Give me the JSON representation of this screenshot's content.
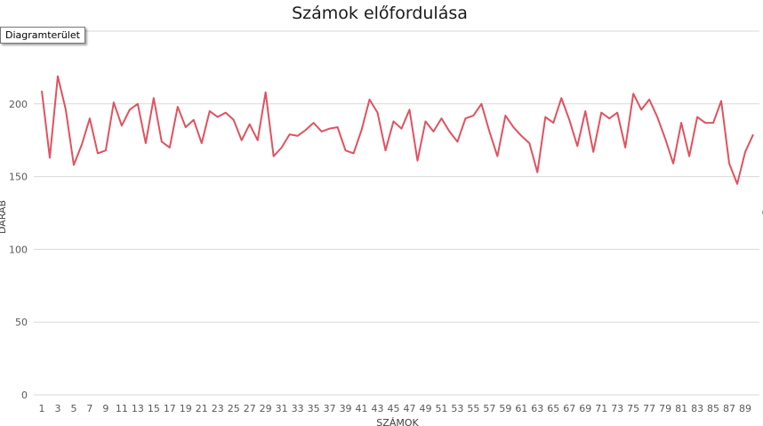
{
  "tooltip": "Diagramterület",
  "chart_data": {
    "type": "line",
    "title": "Számok előfordulása",
    "xlabel": "SZÁMOK",
    "ylabel": "DARAB",
    "ylim": [
      0,
      250
    ],
    "yticks": [
      0,
      50,
      100,
      150,
      200
    ],
    "grid": true,
    "x": [
      1,
      2,
      3,
      4,
      5,
      6,
      7,
      8,
      9,
      10,
      11,
      12,
      13,
      14,
      15,
      16,
      17,
      18,
      19,
      20,
      21,
      22,
      23,
      24,
      25,
      26,
      27,
      28,
      29,
      30,
      31,
      32,
      33,
      34,
      35,
      36,
      37,
      38,
      39,
      40,
      41,
      42,
      43,
      44,
      45,
      46,
      47,
      48,
      49,
      50,
      51,
      52,
      53,
      54,
      55,
      56,
      57,
      58,
      59,
      60,
      61,
      62,
      63,
      64,
      65,
      66,
      67,
      68,
      69,
      70,
      71,
      72,
      73,
      74,
      75,
      76,
      77,
      78,
      79,
      80,
      81,
      82,
      83,
      84,
      85,
      86,
      87,
      88,
      89,
      90
    ],
    "xtick_labels": [
      "1",
      "3",
      "5",
      "7",
      "9",
      "11",
      "13",
      "15",
      "17",
      "19",
      "21",
      "23",
      "25",
      "27",
      "29",
      "31",
      "33",
      "35",
      "37",
      "39",
      "41",
      "43",
      "45",
      "47",
      "49",
      "51",
      "53",
      "55",
      "57",
      "59",
      "61",
      "63",
      "65",
      "67",
      "69",
      "71",
      "73",
      "75",
      "77",
      "79",
      "81",
      "83",
      "85",
      "87",
      "89"
    ],
    "series": [
      {
        "color": "#e05260",
        "values": [
          209,
          163,
          219,
          196,
          158,
          172,
          190,
          166,
          168,
          201,
          185,
          196,
          200,
          173,
          204,
          174,
          170,
          198,
          184,
          189,
          173,
          195,
          191,
          194,
          189,
          175,
          186,
          175,
          208,
          164,
          170,
          179,
          178,
          182,
          187,
          181,
          183,
          184,
          168,
          166,
          182,
          203,
          194,
          168,
          188,
          183,
          196,
          161,
          188,
          181,
          190,
          181,
          174,
          190,
          192,
          200,
          181,
          164,
          192,
          184,
          178,
          173,
          153,
          191,
          187,
          204,
          189,
          171,
          195,
          167,
          194,
          190,
          194,
          170,
          207,
          196,
          203,
          191,
          176,
          159,
          187,
          164,
          191,
          187,
          187,
          202,
          159,
          145,
          167,
          179
        ]
      }
    ]
  }
}
